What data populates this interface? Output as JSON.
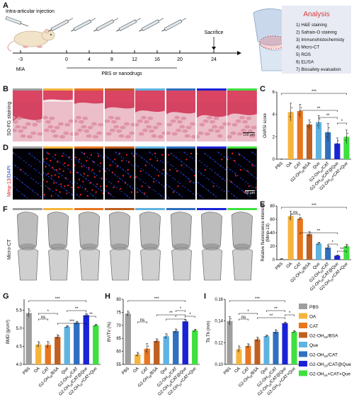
{
  "panels": {
    "A": "A",
    "B": "B",
    "C": "C",
    "D": "D",
    "E": "E",
    "F": "F",
    "G": "G",
    "H": "H",
    "I": "I"
  },
  "timeline": {
    "injection_label": "Intra-articular injection",
    "days": [
      "-3",
      "0",
      "4",
      "8",
      "12",
      "16",
      "20",
      "24"
    ],
    "mia_label": "MIA",
    "treatment_label": "PBS or nanodrugs",
    "sacrifice_label": "Sacrifice"
  },
  "analysis": {
    "title": "Analysis",
    "items": [
      "1) H&E staining",
      "2) Safrain-O staining",
      "3) Immunohistochemisty",
      "4) Micro-CT",
      "5) ROS",
      "6) ELISA",
      "7) Biosafety evaluation"
    ]
  },
  "row_labels": {
    "so_fg": "SO-FG staining",
    "mmp": "Mmp-13",
    "dapi": "/DAPI",
    "microct": "Micro-CT"
  },
  "scale_bars": {
    "B": "100 μm",
    "D": "50 μm"
  },
  "groups": [
    "PBS",
    "OA",
    "CAT",
    "G2-OH16/BSA",
    "Que",
    "G2-OH16/CAT",
    "G2-OH16/CAT@Que",
    "G2-OH16+CAT+Que"
  ],
  "group_colors": [
    "#9e9e9e",
    "#f6b43c",
    "#e8761f",
    "#c06020",
    "#5fb3e0",
    "#2f6fbf",
    "#1a22d6",
    "#3ee03e"
  ],
  "legend": {
    "items": [
      "PBS",
      "OA",
      "CAT",
      "G2-OH16/BSA",
      "Que",
      "G2-OH16/CAT",
      "G2-OH16/CAT@Que",
      "G2-OH16+CAT+Que"
    ]
  },
  "chart_data": [
    {
      "panel": "C",
      "type": "bar",
      "ylabel": "OARSI score",
      "ylim": [
        0,
        6
      ],
      "yticks": [
        0,
        2,
        4,
        6
      ],
      "categories": [
        "PBS",
        "OA",
        "CAT",
        "G2-OH16/BSA",
        "Que",
        "G2-OH16/CAT",
        "G2-OH16/CAT@Que",
        "G2-OH16+CAT+Que"
      ],
      "values": [
        0,
        4.2,
        4.3,
        3.1,
        3.3,
        2.4,
        1.4,
        2.0
      ],
      "errors": [
        0,
        0.8,
        0.6,
        0.4,
        0.6,
        0.8,
        0.5,
        0.6
      ],
      "significance": [
        "***",
        "**",
        "**",
        "*"
      ]
    },
    {
      "panel": "E",
      "type": "bar",
      "ylabel": "Relative fluorescence intensity (Mmp-13)",
      "ylim": [
        0,
        80
      ],
      "yticks": [
        0,
        20,
        40,
        60,
        80
      ],
      "categories": [
        "PBS",
        "OA",
        "CAT",
        "G2-OH16/BSA",
        "Que",
        "G2-OH16/CAT",
        "G2-OH16/CAT@Que",
        "G2-OH16+CAT+Que"
      ],
      "values": [
        1,
        65,
        61,
        38,
        24,
        18,
        6,
        20
      ],
      "errors": [
        0.5,
        7,
        2,
        4,
        2,
        3,
        1,
        3
      ],
      "significance": [
        "***",
        "ns",
        "**",
        "*",
        "**"
      ]
    },
    {
      "panel": "G",
      "type": "bar",
      "ylabel": "BMD (g/cm³)",
      "ylim": [
        4.0,
        5.8
      ],
      "yticks": [
        4.0,
        4.5,
        5.0,
        5.5
      ],
      "categories": [
        "PBS",
        "OA",
        "CAT",
        "G2-OH16/BSA",
        "Que",
        "G2-OH16/CAT",
        "G2-OH16/CAT@Que",
        "G2-OH16+CAT+Que"
      ],
      "values": [
        5.42,
        4.55,
        4.54,
        4.76,
        5.04,
        5.15,
        5.36,
        5.08
      ],
      "errors": [
        0.12,
        0.08,
        0.1,
        0.06,
        0.03,
        0.04,
        0.05,
        0.03
      ],
      "significance": [
        "***",
        "ns",
        "*",
        "***",
        "**",
        "**"
      ]
    },
    {
      "panel": "H",
      "type": "bar",
      "ylabel": "BV/TV (%)",
      "ylim": [
        55,
        80
      ],
      "yticks": [
        55,
        60,
        65,
        70,
        75,
        80
      ],
      "categories": [
        "PBS",
        "OA",
        "CAT",
        "G2-OH16/BSA",
        "Que",
        "G2-OH16/CAT",
        "G2-OH16/CAT@Que",
        "G2-OH16+CAT+Que"
      ],
      "values": [
        74.5,
        58.8,
        61.0,
        64.0,
        65.8,
        67.8,
        71.5,
        68.0
      ],
      "errors": [
        1.0,
        0.8,
        2.0,
        0.8,
        1.0,
        0.8,
        0.7,
        0.5
      ],
      "significance": [
        "***",
        "ns",
        "**",
        "*",
        "*",
        "*"
      ]
    },
    {
      "panel": "I",
      "type": "bar",
      "ylabel": "Tb.Th (mm)",
      "ylim": [
        0.1,
        0.16
      ],
      "yticks": [
        0.1,
        0.12,
        0.14,
        0.16
      ],
      "categories": [
        "PBS",
        "OA",
        "CAT",
        "G2-OH16/BSA",
        "Que",
        "G2-OH16/CAT",
        "G2-OH16/CAT@Que",
        "G2-OH16+CAT+Que"
      ],
      "values": [
        0.14,
        0.114,
        0.117,
        0.123,
        0.126,
        0.13,
        0.138,
        0.13
      ],
      "errors": [
        0.004,
        0.003,
        0.002,
        0.002,
        0.001,
        0.002,
        0.001,
        0.001
      ],
      "significance": [
        "***",
        "ns",
        "*",
        "**",
        "**",
        "*"
      ]
    }
  ]
}
